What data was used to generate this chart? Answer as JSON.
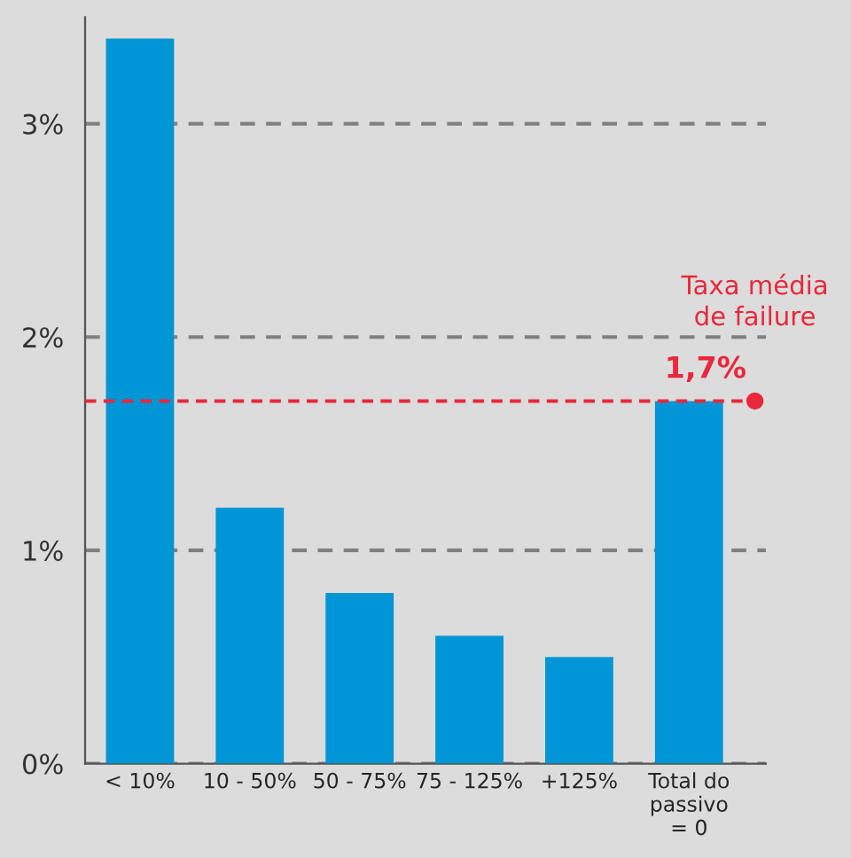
{
  "chart_data": {
    "type": "bar",
    "categories": [
      "< 10%",
      "10 - 50%",
      "50 - 75%",
      "75 - 125%",
      "+125%",
      "Total do\npassivo\n= 0"
    ],
    "values": [
      3.4,
      1.2,
      0.8,
      0.6,
      0.5,
      1.7
    ],
    "color": "#0096d6",
    "ylim": [
      0,
      3.5
    ],
    "yticks": [
      {
        "value": 0,
        "label": "0%"
      },
      {
        "value": 1,
        "label": "1%"
      },
      {
        "value": 2,
        "label": "2%"
      },
      {
        "value": 3,
        "label": "3%"
      }
    ],
    "grid": "y",
    "legend": false,
    "ref_lines": [
      {
        "axis": "y",
        "value": 1.7,
        "label": "Taxa média\nde failure",
        "color": "#e8283c",
        "line_style": "dashed"
      }
    ],
    "annotations": [
      "1,7%"
    ]
  }
}
